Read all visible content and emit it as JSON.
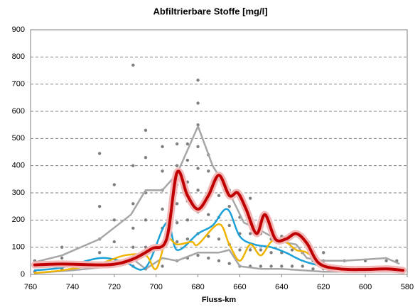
{
  "chart_data": {
    "type": "line",
    "title": "Abfiltrierbare Stoffe [mg/l]",
    "x_label": "Fluss-km",
    "xlim": [
      760,
      580
    ],
    "xticks": [
      760,
      740,
      720,
      700,
      680,
      660,
      640,
      620,
      600,
      580
    ],
    "ylim": [
      0,
      900
    ],
    "yticks": [
      0,
      100,
      200,
      300,
      400,
      500,
      600,
      700,
      800,
      900
    ],
    "grid": true,
    "series": [
      {
        "type": "scatter",
        "color": "#7f7f7f",
        "x": [
          758,
          758,
          758,
          745,
          745,
          745,
          727,
          727,
          727,
          727,
          727,
          720,
          720,
          720,
          720,
          711,
          711,
          711,
          711,
          711,
          711,
          705,
          705,
          705,
          705,
          705,
          705,
          697,
          697,
          697,
          697,
          697,
          697,
          697,
          690,
          690,
          690,
          690,
          690,
          690,
          690,
          685,
          685,
          685,
          685,
          685,
          685,
          685,
          680,
          680,
          680,
          680,
          680,
          680,
          680,
          680,
          680,
          675,
          675,
          675,
          675,
          675,
          675,
          670,
          670,
          670,
          670,
          670,
          665,
          665,
          665,
          665,
          665,
          660,
          660,
          660,
          660,
          655,
          655,
          655,
          655,
          655,
          650,
          650,
          650,
          650,
          645,
          645,
          645,
          640,
          640,
          640,
          635,
          635,
          635,
          630,
          630,
          630,
          625,
          625,
          625,
          620,
          620,
          620,
          610,
          610,
          600,
          600,
          590,
          590,
          585,
          585
        ],
        "values": [
          10,
          30,
          50,
          20,
          60,
          100,
          30,
          80,
          130,
          250,
          445,
          40,
          120,
          200,
          330,
          30,
          100,
          170,
          260,
          400,
          770,
          20,
          100,
          200,
          300,
          430,
          530,
          30,
          100,
          170,
          240,
          310,
          380,
          470,
          50,
          120,
          190,
          260,
          330,
          400,
          480,
          60,
          130,
          200,
          270,
          340,
          420,
          480,
          70,
          150,
          230,
          310,
          390,
          470,
          550,
          630,
          715,
          60,
          140,
          220,
          300,
          380,
          440,
          50,
          130,
          210,
          290,
          360,
          40,
          110,
          180,
          250,
          310,
          30,
          90,
          150,
          210,
          30,
          90,
          150,
          220,
          280,
          30,
          90,
          150,
          210,
          30,
          80,
          130,
          30,
          80,
          140,
          30,
          90,
          150,
          30,
          80,
          130,
          20,
          50,
          80,
          20,
          50,
          80,
          20,
          50,
          20,
          50,
          20,
          50,
          20,
          50
        ]
      },
      {
        "type": "line",
        "color": "#a6a6a6",
        "smooth": false,
        "x": [
          758,
          745,
          727,
          712,
          705,
          697,
          690,
          680,
          673,
          665,
          658,
          652,
          645,
          640,
          633,
          628,
          620,
          610,
          600,
          590,
          584
        ],
        "values": [
          45,
          70,
          130,
          220,
          310,
          310,
          370,
          545,
          400,
          300,
          190,
          170,
          140,
          120,
          110,
          60,
          50,
          50,
          55,
          60,
          40
        ]
      },
      {
        "type": "line",
        "color": "#a6a6a6",
        "smooth": false,
        "x": [
          758,
          740,
          727,
          710,
          705,
          697,
          690,
          680,
          670,
          665,
          660,
          650,
          640,
          630,
          620,
          610,
          600,
          585
        ],
        "values": [
          5,
          15,
          25,
          50,
          20,
          60,
          50,
          80,
          80,
          90,
          30,
          20,
          20,
          15,
          10,
          10,
          10,
          10
        ]
      },
      {
        "type": "line",
        "color": "#1ca0d8",
        "smooth": true,
        "x": [
          758,
          745,
          727,
          715,
          705,
          695,
          690,
          680,
          673,
          666,
          660,
          653,
          645,
          638,
          630,
          620,
          610,
          600,
          585
        ],
        "values": [
          15,
          25,
          60,
          45,
          25,
          190,
          90,
          150,
          180,
          240,
          140,
          110,
          100,
          80,
          50,
          30,
          25,
          20,
          15
        ]
      },
      {
        "type": "line",
        "color": "#f0b400",
        "smooth": true,
        "x": [
          758,
          745,
          727,
          715,
          705,
          700,
          695,
          690,
          683,
          680,
          670,
          665,
          660,
          655,
          650,
          645,
          640,
          633,
          628,
          620
        ],
        "values": [
          5,
          15,
          40,
          70,
          70,
          20,
          130,
          110,
          120,
          110,
          185,
          110,
          50,
          110,
          70,
          120,
          130,
          90,
          80,
          30
        ]
      },
      {
        "type": "line",
        "color": "#c00000",
        "smooth": true,
        "halo": "#f2b8b8",
        "x": [
          758,
          745,
          727,
          718,
          710,
          702,
          695,
          690,
          685,
          680,
          675,
          670,
          665,
          661,
          657,
          652,
          648,
          643,
          638,
          633,
          628,
          622,
          612,
          600,
          590,
          582
        ],
        "values": [
          35,
          38,
          35,
          40,
          60,
          95,
          130,
          375,
          290,
          240,
          290,
          365,
          290,
          300,
          240,
          150,
          220,
          130,
          130,
          150,
          115,
          40,
          20,
          18,
          20,
          15
        ]
      }
    ]
  }
}
